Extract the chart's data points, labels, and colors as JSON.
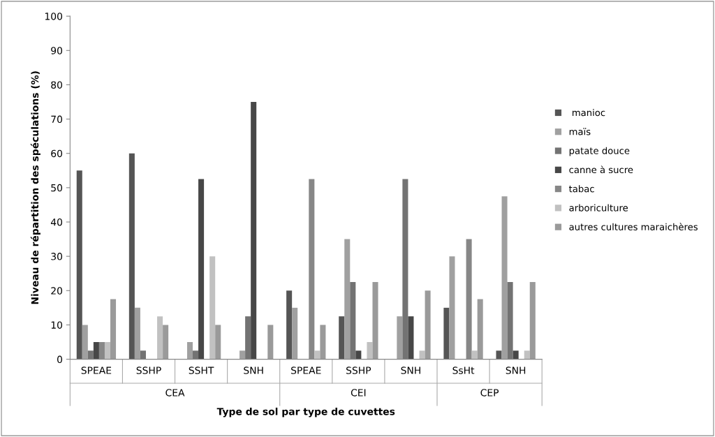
{
  "chart_data": {
    "type": "bar",
    "categories": [
      "SPEAE",
      "SSHP",
      "SSHT",
      "SNH",
      "SPEAE",
      "SSHP",
      "SNH",
      "SsHt",
      "SNH"
    ],
    "series": [
      {
        "name": " manioc",
        "color": "#555555",
        "values": [
          55,
          60,
          0,
          0,
          20,
          12.5,
          0,
          15,
          2.5
        ]
      },
      {
        "name": "maïs",
        "color": "#a0a0a0",
        "values": [
          10,
          15,
          5,
          2.5,
          15,
          35,
          12.5,
          30,
          47.5
        ]
      },
      {
        "name": "patate douce",
        "color": "#737373",
        "values": [
          2.5,
          2.5,
          2.5,
          12.5,
          0,
          22.5,
          52.5,
          0,
          22.5
        ]
      },
      {
        "name": "canne à sucre",
        "color": "#474747",
        "values": [
          5,
          0,
          52.5,
          75,
          0,
          2.5,
          12.5,
          0,
          2.5
        ]
      },
      {
        "name": "tabac",
        "color": "#878787",
        "values": [
          5,
          0,
          0,
          0,
          52.5,
          0,
          0,
          35,
          0
        ]
      },
      {
        "name": "arboriculture",
        "color": "#c1c1c1",
        "values": [
          5,
          12.5,
          30,
          0,
          2.5,
          5,
          2.5,
          2.5,
          2.5
        ]
      },
      {
        "name": "autres cultures maraichères",
        "color": "#9a9a9a",
        "values": [
          17.5,
          10,
          10,
          10,
          10,
          22.5,
          20,
          17.5,
          22.5
        ]
      }
    ],
    "xlabel": "Type de sol par type de cuvettes",
    "ylabel": "Niveau de répartition des spéculations (%)",
    "annotations": [
      "CEA",
      "CEI",
      "CEP"
    ],
    "ylim": [
      0,
      100
    ],
    "yticks": [
      0,
      10,
      20,
      30,
      40,
      50,
      60,
      70,
      80,
      90,
      100
    ],
    "grid": false,
    "legend": "right"
  }
}
